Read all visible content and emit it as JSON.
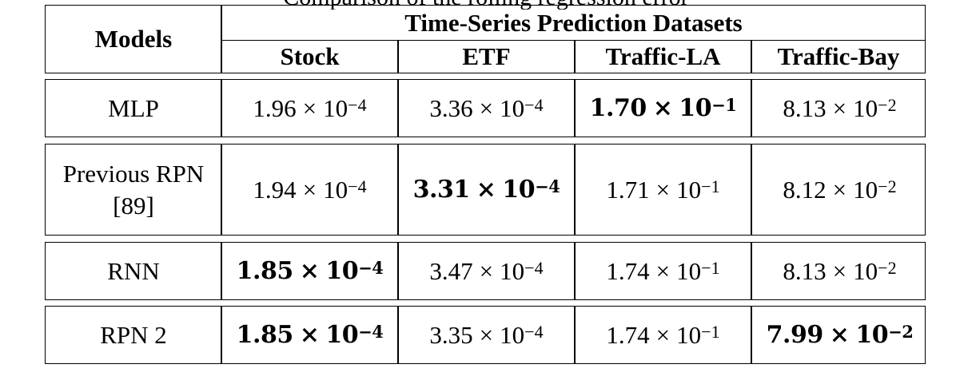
{
  "caption_fragment": "Comparison of the rolling regression error",
  "table": {
    "model_header": "Models",
    "group_header": "Time-Series Prediction Datasets",
    "columns": [
      "Stock",
      "ETF",
      "Traffic-LA",
      "Traffic-Bay"
    ],
    "rows": [
      {
        "model": "MLP",
        "cells": [
          {
            "mant": "1.96",
            "exp": "−4",
            "best": false
          },
          {
            "mant": "3.36",
            "exp": "−4",
            "best": false
          },
          {
            "mant": "1.70",
            "exp": "−1",
            "best": true
          },
          {
            "mant": "8.13",
            "exp": "−2",
            "best": false
          }
        ]
      },
      {
        "model": "Previous RPN",
        "model_ref": "[89]",
        "cells": [
          {
            "mant": "1.94",
            "exp": "−4",
            "best": false
          },
          {
            "mant": "3.31",
            "exp": "−4",
            "best": true
          },
          {
            "mant": "1.71",
            "exp": "−1",
            "best": false
          },
          {
            "mant": "8.12",
            "exp": "−2",
            "best": false
          }
        ]
      },
      {
        "model": "RNN",
        "cells": [
          {
            "mant": "1.85",
            "exp": "−4",
            "best": true
          },
          {
            "mant": "3.47",
            "exp": "−4",
            "best": false
          },
          {
            "mant": "1.74",
            "exp": "−1",
            "best": false
          },
          {
            "mant": "8.13",
            "exp": "−2",
            "best": false
          }
        ]
      },
      {
        "model": "RPN 2",
        "cells": [
          {
            "mant": "1.85",
            "exp": "−4",
            "best": true
          },
          {
            "mant": "3.35",
            "exp": "−4",
            "best": false
          },
          {
            "mant": "1.74",
            "exp": "−1",
            "best": false
          },
          {
            "mant": "7.99",
            "exp": "−2",
            "best": true
          }
        ]
      }
    ],
    "times_symbol": "×",
    "base": "10"
  }
}
